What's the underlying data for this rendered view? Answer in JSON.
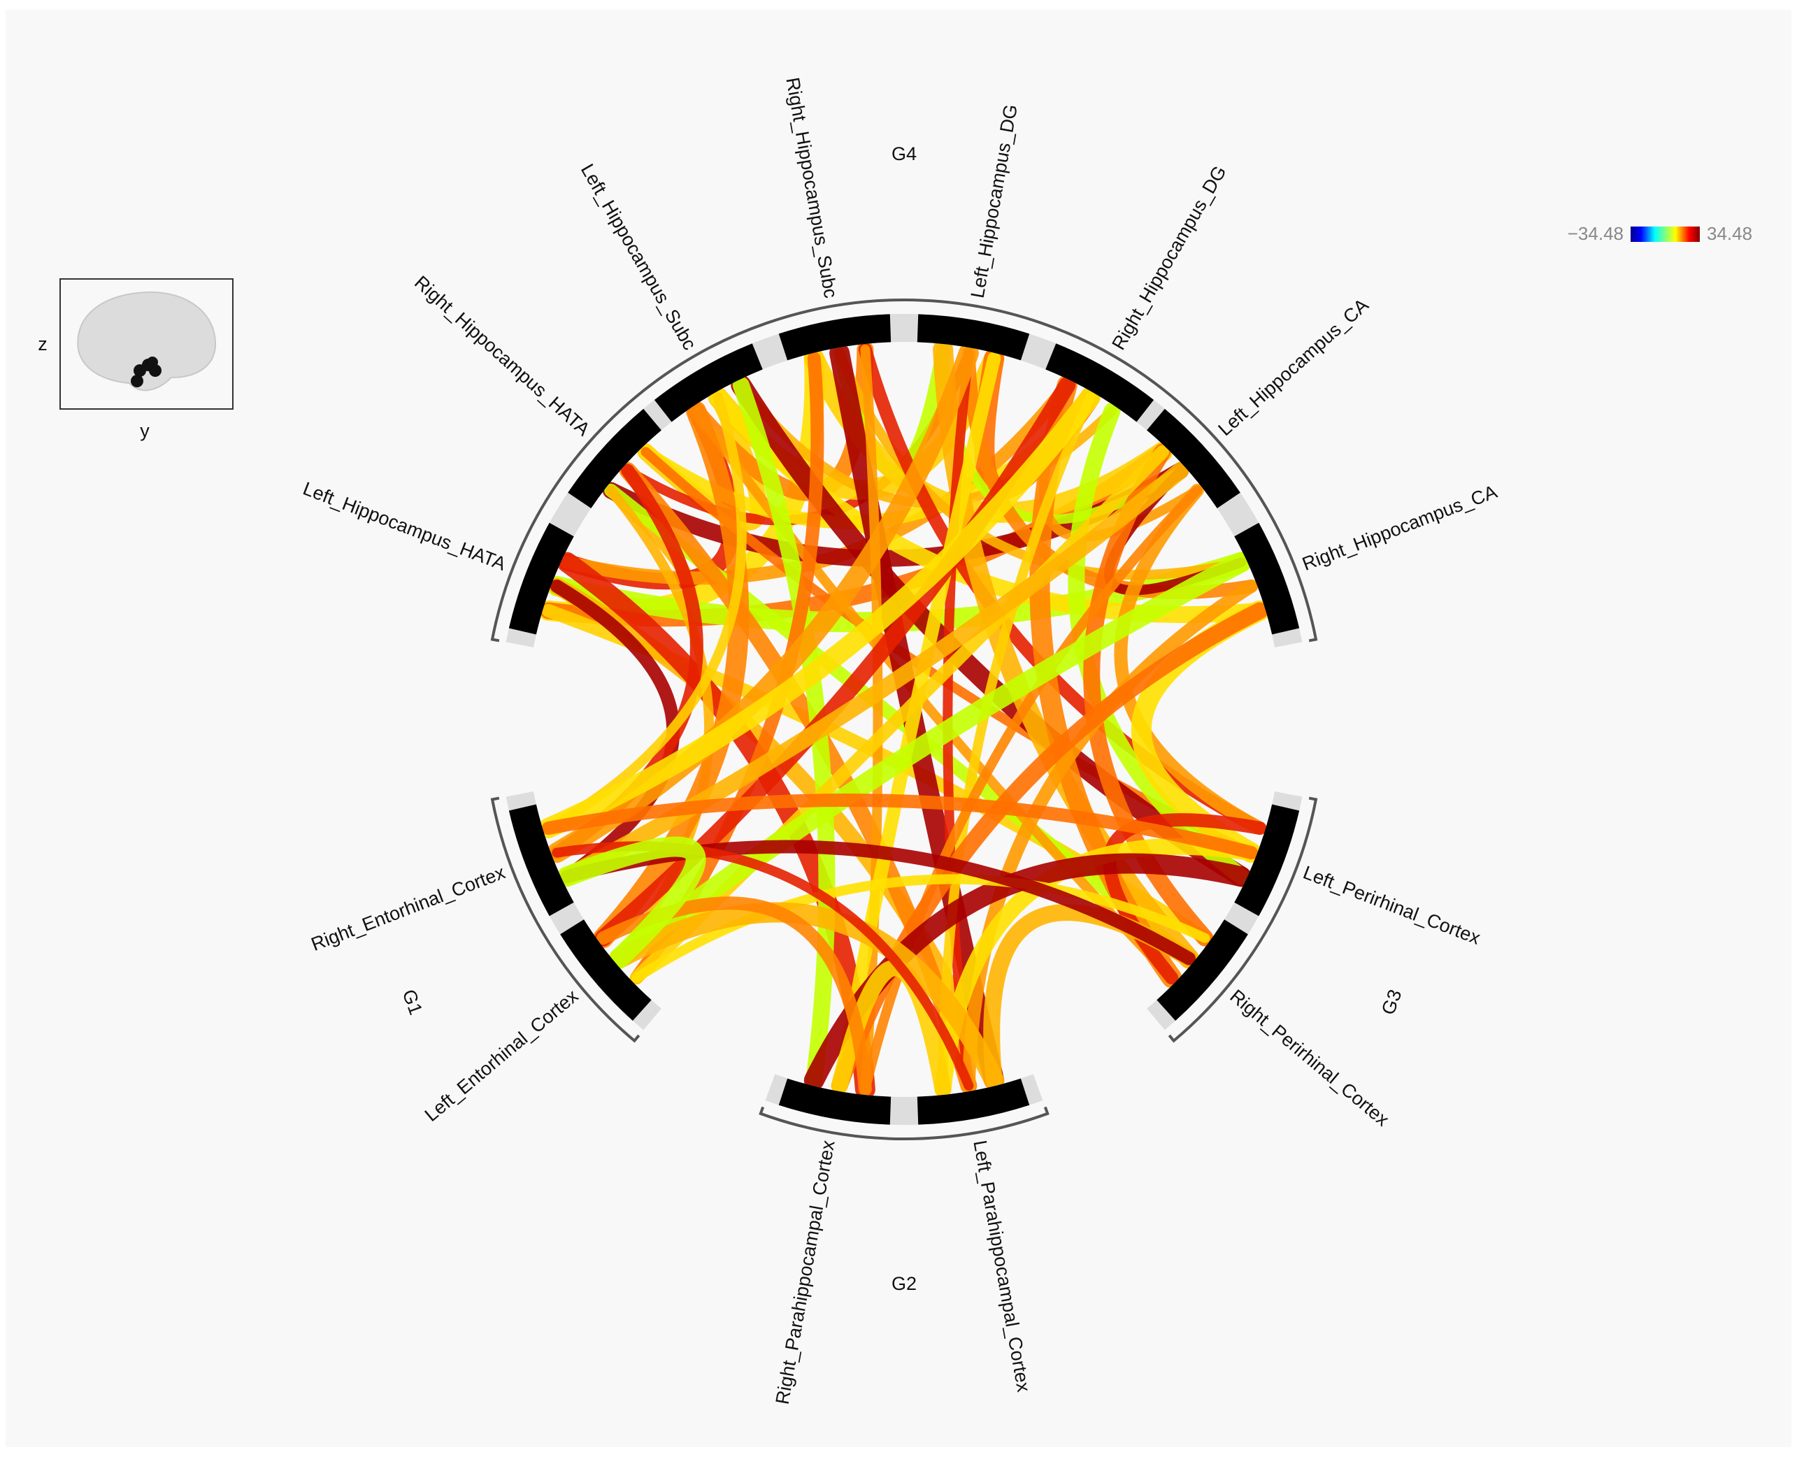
{
  "inset": {
    "z_label": "z",
    "y_label": "y"
  },
  "colorbar": {
    "min_label": "−34.48",
    "max_label": "34.48"
  },
  "groups": [
    {
      "label": "G4"
    },
    {
      "label": "G3"
    },
    {
      "label": "G2"
    },
    {
      "label": "G1"
    }
  ],
  "nodes": [
    {
      "label": "Left_Hippocampus_HATA"
    },
    {
      "label": "Right_Hippocampus_HATA"
    },
    {
      "label": "Left_Hippocampus_Subc"
    },
    {
      "label": "Right_Hippocampus_Subc"
    },
    {
      "label": "Left_Hippocampus_DG"
    },
    {
      "label": "Right_Hippocampus_DG"
    },
    {
      "label": "Left_Hippocampus_CA"
    },
    {
      "label": "Right_Hippocampus_CA"
    },
    {
      "label": "Left_Perirhinal_Cortex"
    },
    {
      "label": "Right_Perirhinal_Cortex"
    },
    {
      "label": "Left_Parahippocampal_Cortex"
    },
    {
      "label": "Right_Parahippocampal_Cortex"
    },
    {
      "label": "Left_Entorhinal_Cortex"
    },
    {
      "label": "Right_Entorhinal_Cortex"
    }
  ]
}
